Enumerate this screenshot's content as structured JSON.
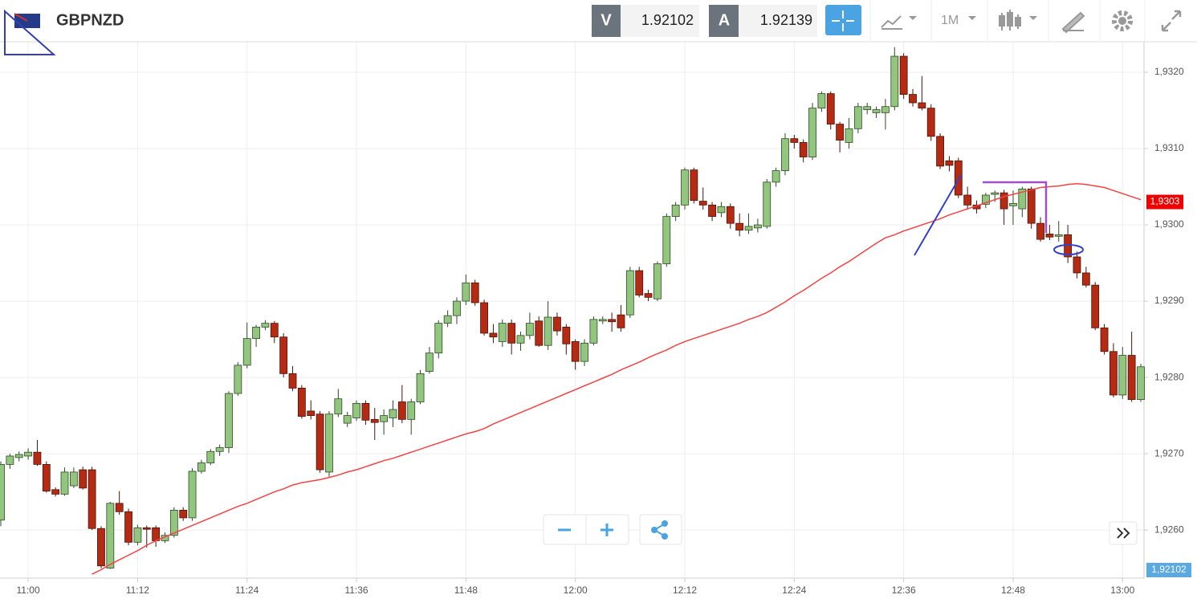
{
  "header": {
    "symbol": "GBPNZD",
    "sell_label": "V",
    "sell_price": "1.92102",
    "buy_label": "A",
    "buy_price": "1.92139",
    "timeframe": "1M"
  },
  "chart_data": {
    "type": "candlestick",
    "categories": [
      null,
      null,
      null,
      "11:00",
      null,
      null,
      null,
      null,
      null,
      null,
      null,
      null,
      null,
      null,
      null,
      "11:12",
      null,
      null,
      null,
      null,
      null,
      null,
      null,
      null,
      null,
      null,
      null,
      "11:24",
      null,
      null,
      null,
      null,
      null,
      null,
      null,
      null,
      null,
      null,
      null,
      "11:36",
      null,
      null,
      null,
      null,
      null,
      null,
      null,
      null,
      null,
      null,
      null,
      "11:48",
      null,
      null,
      null,
      null,
      null,
      null,
      null,
      null,
      null,
      null,
      null,
      "12:00",
      null,
      null,
      null,
      null,
      null,
      null,
      null,
      null,
      null,
      null,
      null,
      "12:12",
      null,
      null,
      null,
      null,
      null,
      null,
      null,
      null,
      null,
      null,
      null,
      "12:24",
      null,
      null,
      null,
      null,
      null,
      null,
      null,
      null,
      null,
      null,
      null,
      "12:36",
      null,
      null,
      null,
      null,
      null,
      null,
      null,
      null,
      null,
      null,
      null,
      "12:48",
      null,
      null,
      null,
      null,
      null,
      null,
      null,
      null,
      null,
      null,
      null,
      "13:00",
      null,
      null
    ],
    "open": [
      1.92613,
      1.92686,
      1.92695,
      1.92697,
      1.92702,
      1.92686,
      1.92653,
      1.92647,
      1.92658,
      1.92679,
      1.92679,
      1.92602,
      1.9255,
      1.92635,
      1.92624,
      1.92584,
      1.92603,
      1.92603,
      1.92586,
      1.92593,
      1.92626,
      1.92616,
      1.92677,
      1.92688,
      1.92703,
      1.92708,
      1.92779,
      1.92816,
      1.92851,
      1.92866,
      1.92871,
      1.92853,
      1.92805,
      1.92786,
      1.92756,
      1.92752,
      1.92676,
      1.92752,
      1.9274,
      1.92747,
      1.92766,
      1.92745,
      1.92742,
      1.92747,
      1.92768,
      1.92745,
      1.92768,
      1.92808,
      1.92832,
      1.92871,
      1.92881,
      1.929,
      1.92924,
      1.92898,
      1.92858,
      1.92847,
      1.92871,
      1.92845,
      1.92855,
      1.92874,
      1.92842,
      1.92879,
      1.92866,
      1.92847,
      1.92821,
      1.92845,
      1.92874,
      1.92876,
      1.92882,
      1.92882,
      1.9294,
      1.9291,
      1.92903,
      1.92949,
      1.93011,
      1.93026,
      1.93072,
      1.93031,
      1.93026,
      1.93016,
      1.93024,
      1.93002,
      1.92993,
      1.92996,
      1.92998,
      1.93056,
      1.93071,
      1.93113,
      1.93108,
      1.93089,
      1.93153,
      1.93172,
      1.93132,
      1.93108,
      1.93126,
      1.93151,
      1.93147,
      1.93147,
      1.93155,
      1.93221,
      1.93171,
      1.9316,
      1.93153,
      1.93116,
      1.93084,
      1.93084,
      1.93039,
      1.93026,
      1.93027,
      1.9304,
      1.93042,
      1.93025,
      1.93021,
      1.93047,
      1.93002,
      1.92988,
      1.92985,
      1.92987,
      1.92958,
      1.92937,
      1.92921,
      1.92865,
      1.92834,
      1.92777,
      1.92829,
      1.92771
    ],
    "high": [
      1.9269,
      1.927,
      1.92703,
      1.92707,
      1.92718,
      1.9269,
      1.92656,
      1.92682,
      1.92682,
      1.92683,
      1.92683,
      1.92605,
      1.92637,
      1.92651,
      1.92628,
      1.92607,
      1.92606,
      1.92606,
      1.92597,
      1.9263,
      1.9263,
      1.92681,
      1.92692,
      1.92706,
      1.92712,
      1.92782,
      1.9282,
      1.92872,
      1.92869,
      1.92875,
      1.92874,
      1.92858,
      1.92815,
      1.9279,
      1.9277,
      1.92756,
      1.92756,
      1.92785,
      1.92755,
      1.9277,
      1.9277,
      1.9276,
      1.92758,
      1.9277,
      1.9279,
      1.92772,
      1.9281,
      1.9284,
      1.92875,
      1.92888,
      1.92905,
      1.92935,
      1.92928,
      1.92902,
      1.9287,
      1.92876,
      1.92876,
      1.9286,
      1.92885,
      1.9288,
      1.929,
      1.92885,
      1.9287,
      1.9285,
      1.9285,
      1.9288,
      1.9288,
      1.92885,
      1.92895,
      1.92945,
      1.92945,
      1.92915,
      1.92952,
      1.93015,
      1.9303,
      1.93075,
      1.93075,
      1.93049,
      1.9303,
      1.9303,
      1.93028,
      1.93015,
      1.93015,
      1.93008,
      1.9306,
      1.93075,
      1.9312,
      1.93118,
      1.93112,
      1.9316,
      1.93175,
      1.93175,
      1.93135,
      1.9314,
      1.9316,
      1.9316,
      1.93155,
      1.93165,
      1.93233,
      1.93225,
      1.93178,
      1.93195,
      1.93158,
      1.9312,
      1.9309,
      1.93088,
      1.9305,
      1.93032,
      1.93042,
      1.93045,
      1.93046,
      1.93045,
      1.9305,
      1.9305,
      1.9301,
      1.93,
      1.93005,
      1.93,
      1.92965,
      1.92945,
      1.92925,
      1.9287,
      1.92845,
      1.9284,
      1.9286,
      1.92818
    ],
    "low": [
      1.92605,
      1.9268,
      1.9269,
      1.92692,
      1.92684,
      1.92649,
      1.92644,
      1.92645,
      1.92655,
      1.92653,
      1.926,
      1.9255,
      1.92549,
      1.9262,
      1.9258,
      1.9258,
      1.92577,
      1.92578,
      1.92583,
      1.9259,
      1.92612,
      1.92612,
      1.92674,
      1.92685,
      1.92697,
      1.92701,
      1.92776,
      1.92812,
      1.9284,
      1.92862,
      1.92845,
      1.928,
      1.92782,
      1.92746,
      1.92745,
      1.92675,
      1.9267,
      1.92748,
      1.92735,
      1.92743,
      1.92738,
      1.92718,
      1.92725,
      1.92735,
      1.9274,
      1.92725,
      1.92765,
      1.92805,
      1.92825,
      1.92866,
      1.9287,
      1.92895,
      1.92894,
      1.92855,
      1.92845,
      1.9284,
      1.9283,
      1.92835,
      1.9285,
      1.9284,
      1.92836,
      1.92855,
      1.9283,
      1.9281,
      1.92815,
      1.92842,
      1.9287,
      1.9286,
      1.9286,
      1.92878,
      1.92905,
      1.929,
      1.929,
      1.92945,
      1.93005,
      1.9302,
      1.93028,
      1.9302,
      1.93005,
      1.9301,
      1.92995,
      1.92985,
      1.92988,
      1.9299,
      1.92995,
      1.9305,
      1.93065,
      1.931,
      1.93082,
      1.93085,
      1.93148,
      1.93125,
      1.93095,
      1.931,
      1.9312,
      1.93145,
      1.9314,
      1.93125,
      1.9315,
      1.93165,
      1.93155,
      1.9315,
      1.9311,
      1.93073,
      1.9307,
      1.93035,
      1.9302,
      1.93015,
      1.93022,
      1.9303,
      1.93,
      1.93,
      1.9301,
      1.92995,
      1.92978,
      1.9298,
      1.92978,
      1.9295,
      1.9293,
      1.92918,
      1.92862,
      1.9283,
      1.92774,
      1.92772,
      1.92768,
      1.92768
    ],
    "close": [
      1.92686,
      1.92697,
      1.92699,
      1.92702,
      1.92686,
      1.92651,
      1.92647,
      1.92676,
      1.92676,
      1.92655,
      1.92602,
      1.92553,
      1.92635,
      1.92624,
      1.92584,
      1.92603,
      1.92601,
      1.92586,
      1.92593,
      1.92626,
      1.92616,
      1.92677,
      1.92688,
      1.92703,
      1.92708,
      1.92779,
      1.92816,
      1.92851,
      1.92866,
      1.92871,
      1.92853,
      1.92805,
      1.92786,
      1.92749,
      1.9275,
      1.92679,
      1.92752,
      1.92772,
      1.9275,
      1.92766,
      1.92744,
      1.92741,
      1.9275,
      1.92758,
      1.92745,
      1.92768,
      1.92805,
      1.92832,
      1.92871,
      1.92881,
      1.929,
      1.92924,
      1.92898,
      1.92858,
      1.92853,
      1.92871,
      1.92845,
      1.92855,
      1.92871,
      1.92842,
      1.92879,
      1.92861,
      1.92844,
      1.92821,
      1.92845,
      1.92876,
      1.92876,
      1.92873,
      1.92865,
      1.9294,
      1.92908,
      1.92905,
      1.92949,
      1.93011,
      1.93026,
      1.93072,
      1.93032,
      1.93026,
      1.93011,
      1.93024,
      1.93002,
      1.92993,
      1.92998,
      1.93,
      1.93056,
      1.93071,
      1.93113,
      1.93108,
      1.93089,
      1.93153,
      1.93172,
      1.93132,
      1.93111,
      1.93126,
      1.93155,
      1.93155,
      1.93151,
      1.93155,
      1.93221,
      1.93171,
      1.9316,
      1.93153,
      1.93116,
      1.93077,
      1.93078,
      1.93039,
      1.93026,
      1.93021,
      1.93039,
      1.93042,
      1.93021,
      1.93028,
      1.93047,
      1.93002,
      1.92981,
      1.92984,
      1.92987,
      1.92958,
      1.92937,
      1.92921,
      1.92865,
      1.92834,
      1.92777,
      1.92829,
      1.92771,
      1.92814
    ],
    "up_color": "#92c67f",
    "down_color": "#b42a12",
    "moving_average": {
      "color": "#f24444",
      "values": [
        null,
        null,
        null,
        null,
        null,
        null,
        null,
        null,
        null,
        null,
        1.92542,
        1.92548,
        1.92555,
        1.92561,
        1.92567,
        1.92573,
        1.9258,
        1.92586,
        1.92591,
        1.92596,
        1.92601,
        1.92606,
        1.92611,
        1.92616,
        1.92621,
        1.92626,
        1.92631,
        1.92635,
        1.9264,
        1.92645,
        1.9265,
        1.92654,
        1.92659,
        1.92662,
        1.92664,
        1.92666,
        1.92669,
        1.92672,
        1.92676,
        1.92679,
        1.92683,
        1.92687,
        1.92691,
        1.92694,
        1.92698,
        1.92702,
        1.92706,
        1.9271,
        1.92714,
        1.92718,
        1.92722,
        1.92726,
        1.92729,
        1.92733,
        1.92739,
        1.92744,
        1.92749,
        1.92754,
        1.92759,
        1.92764,
        1.92769,
        1.92774,
        1.92779,
        1.92784,
        1.92789,
        1.92794,
        1.92799,
        1.92804,
        1.9281,
        1.92815,
        1.9282,
        1.92826,
        1.92831,
        1.92836,
        1.92842,
        1.92847,
        1.92851,
        1.92855,
        1.92859,
        1.92863,
        1.92867,
        1.92871,
        1.92876,
        1.9288,
        1.92885,
        1.92892,
        1.92899,
        1.92907,
        1.92914,
        1.92922,
        1.9293,
        1.92937,
        1.92945,
        1.92952,
        1.9296,
        1.92968,
        1.92976,
        1.92983,
        1.92987,
        1.92992,
        1.92996,
        1.93,
        1.93004,
        1.93008,
        1.93013,
        1.93017,
        1.93021,
        1.93025,
        1.93029,
        1.93033,
        1.93037,
        1.9304,
        1.93043,
        1.93046,
        1.93049,
        1.9305,
        1.93051,
        1.93053,
        1.93054,
        1.93053,
        1.93051,
        1.93049,
        1.93045,
        1.93041,
        1.93037,
        1.93033
      ]
    },
    "ylim": [
      1.92537,
      1.9324
    ],
    "yticks": [
      {
        "value": 1.926,
        "label": "1,9260"
      },
      {
        "value": 1.927,
        "label": "1,9270"
      },
      {
        "value": 1.928,
        "label": "1,9280"
      },
      {
        "value": 1.929,
        "label": "1,9290"
      },
      {
        "value": 1.93,
        "label": "1,9300"
      },
      {
        "value": 1.931,
        "label": "1,9310"
      },
      {
        "value": 1.932,
        "label": "1,9320"
      }
    ],
    "grid": true,
    "price_tag": {
      "value": 1.9303,
      "label": "1,9303",
      "color": "#ee0000"
    },
    "bid_tag": "1,92102"
  }
}
